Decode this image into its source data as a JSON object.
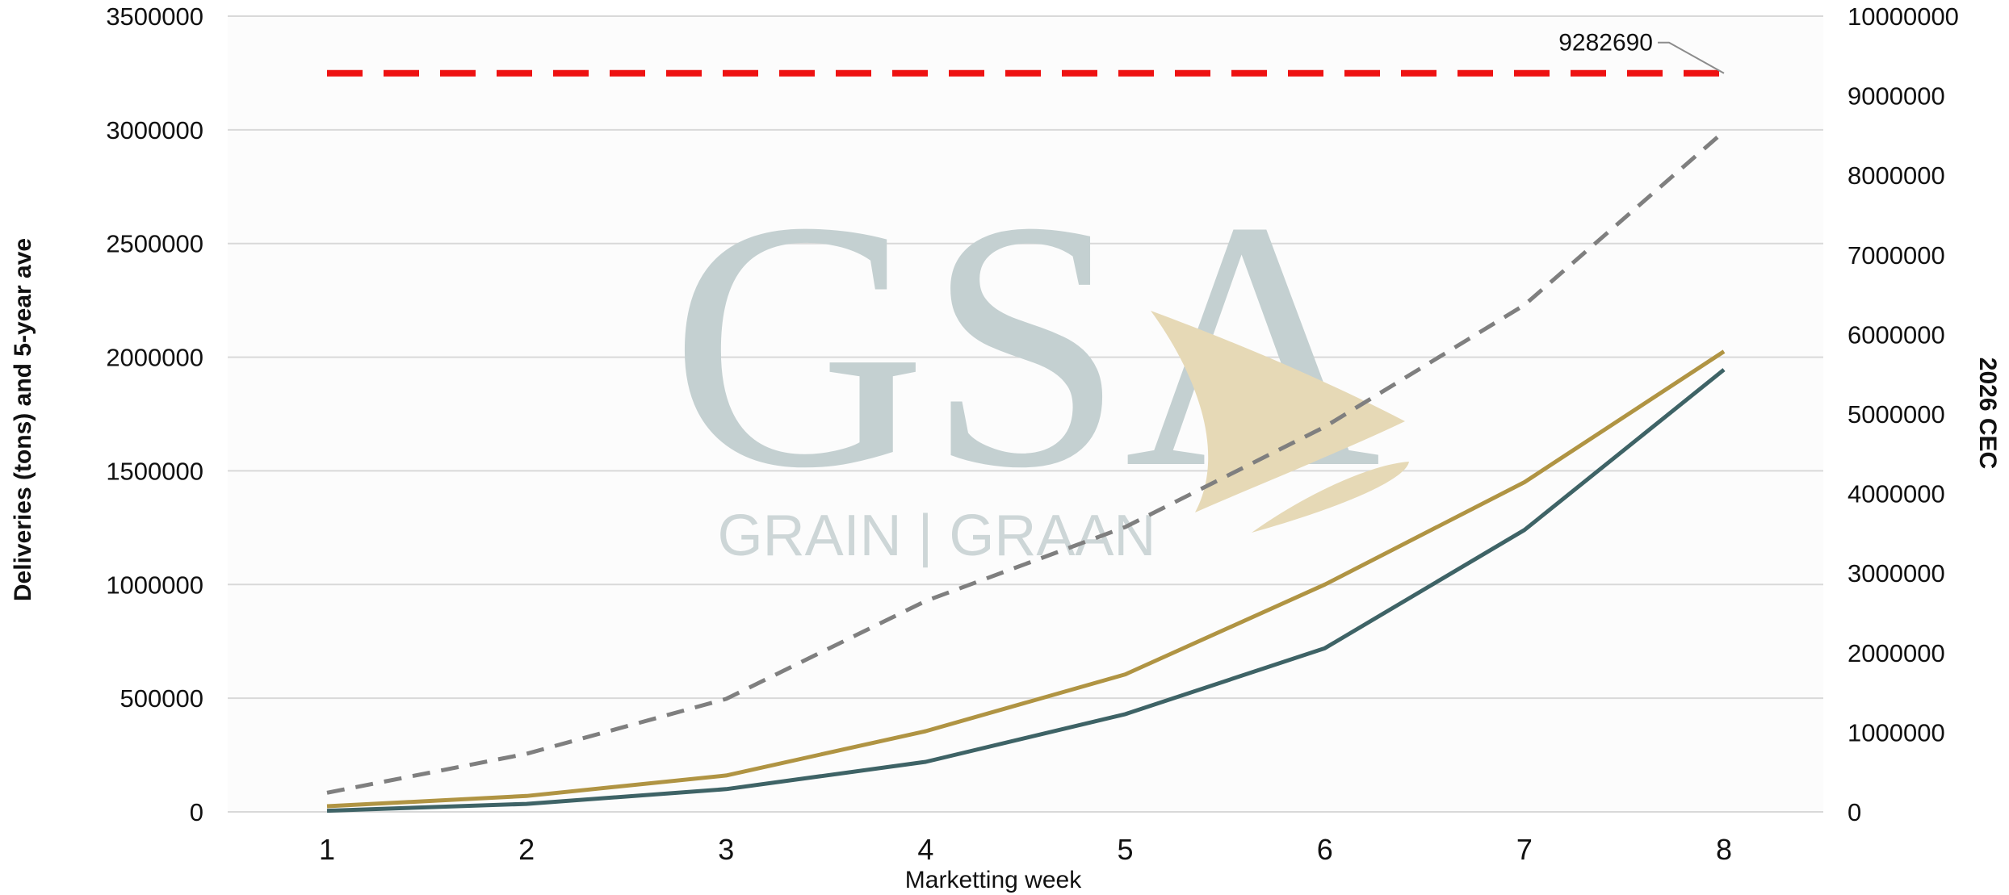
{
  "chart_data": {
    "type": "line",
    "title": "",
    "xlabel": "Marketting week",
    "ylabel_left": "Deliveries (tons) and 5-year ave",
    "ylabel_right": "2026 CEC",
    "x": [
      1,
      2,
      3,
      4,
      5,
      6,
      7,
      8
    ],
    "ylim_left": [
      0,
      3500000
    ],
    "ylim_right": [
      0,
      10000000
    ],
    "yticks_left": [
      0,
      500000,
      1000000,
      1500000,
      2000000,
      2500000,
      3000000,
      3500000
    ],
    "yticks_right": [
      0,
      1000000,
      2000000,
      3000000,
      4000000,
      5000000,
      6000000,
      7000000,
      8000000,
      9000000,
      10000000
    ],
    "grid": true,
    "legend": "none",
    "series": [
      {
        "axis": "left",
        "style": "solid",
        "color": "#b09443",
        "values": [
          25000,
          70000,
          160000,
          355000,
          605000,
          1000000,
          1450000,
          2025000
        ]
      },
      {
        "axis": "left",
        "style": "solid",
        "color": "#3e6366",
        "values": [
          5000,
          35000,
          100000,
          220000,
          430000,
          720000,
          1240000,
          1945000
        ]
      },
      {
        "axis": "right",
        "style": "dashed",
        "color": "#7f7f7f",
        "values": [
          240000,
          730000,
          1420000,
          2650000,
          3580000,
          4840000,
          6370000,
          8550000
        ]
      },
      {
        "axis": "right",
        "style": "dashed",
        "color": "#ee1111",
        "values": [
          9282690,
          9282690,
          9282690,
          9282690,
          9282690,
          9282690,
          9282690,
          9282690
        ]
      }
    ],
    "annotations": [
      {
        "text": "9282690",
        "x": 8,
        "value": 9282690,
        "axis": "right"
      }
    ]
  },
  "watermark": {
    "logo_text": "GSA",
    "subtitle": "GRAIN | GRAAN",
    "colors": {
      "gray": "#c4d0d1",
      "gold": "#e6d9b6"
    }
  },
  "colors": {
    "grid": "#d9d9d9",
    "background": "#fcfcfc"
  }
}
